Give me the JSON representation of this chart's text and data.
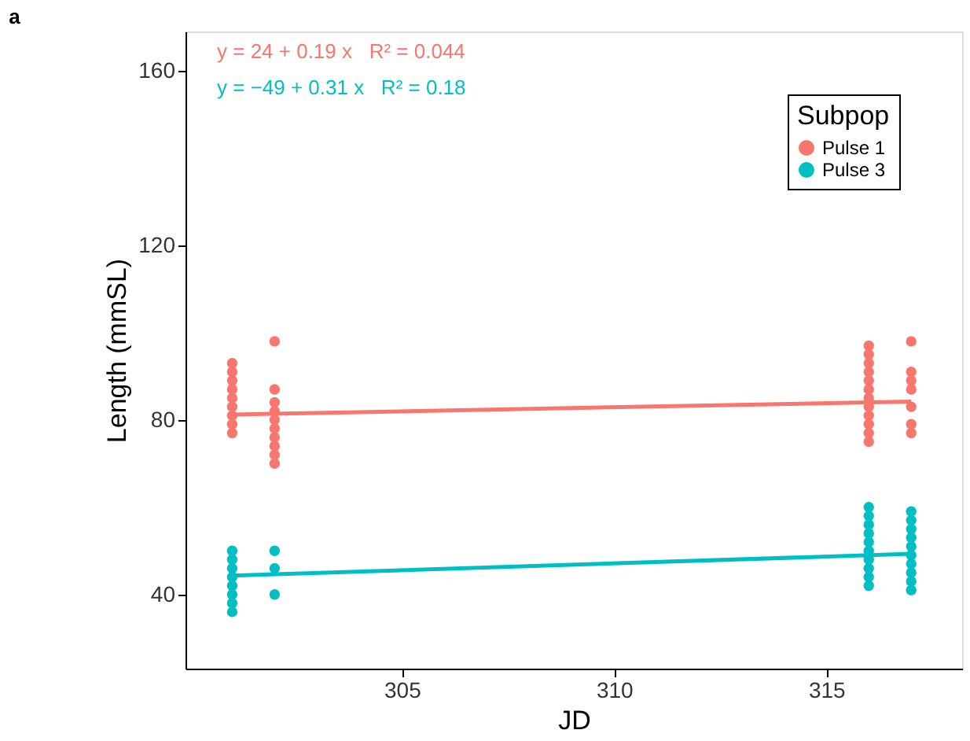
{
  "chart_data": {
    "type": "scatter",
    "title": "a",
    "xlabel": "JD",
    "ylabel": "Length (mmSL)",
    "legend_title": "Subpop",
    "legend": "top right",
    "grid": false,
    "marker": "circle",
    "xlim": [
      299.9,
      318.2
    ],
    "ylim": [
      23,
      169
    ],
    "xticks": [
      305,
      310,
      315
    ],
    "yticks": [
      40,
      80,
      120,
      160
    ],
    "annotations": [
      "y = 24 + 0.19 x   R² = 0.044",
      "y = −49 + 0.31 x   R² = 0.18"
    ],
    "series": [
      {
        "name": "Pulse 1",
        "color": "#f8766d",
        "x": [
          301,
          301,
          301,
          301,
          301,
          301,
          301,
          301,
          301,
          302,
          302,
          302,
          302,
          302,
          302,
          302,
          302,
          302,
          302,
          316,
          316,
          316,
          316,
          316,
          316,
          316,
          316,
          316,
          316,
          316,
          316,
          317,
          317,
          317,
          317,
          317,
          317,
          317
        ],
        "values": [
          77,
          79,
          81,
          83,
          85,
          87,
          89,
          91,
          93,
          70,
          72,
          74,
          76,
          78,
          80,
          82,
          84,
          87,
          98,
          75,
          77,
          79,
          81,
          83,
          85,
          87,
          89,
          91,
          93,
          95,
          97,
          77,
          79,
          83,
          87,
          89,
          91,
          98
        ]
      },
      {
        "name": "Pulse 3",
        "color": "#00bfc4",
        "x": [
          301,
          301,
          301,
          301,
          301,
          301,
          301,
          301,
          302,
          302,
          302,
          316,
          316,
          316,
          316,
          316,
          316,
          316,
          316,
          316,
          316,
          317,
          317,
          317,
          317,
          317,
          317,
          317,
          317,
          317,
          317
        ],
        "values": [
          36,
          38,
          40,
          42,
          44,
          46,
          48,
          50,
          40,
          46,
          50,
          42,
          44,
          46,
          48,
          50,
          52,
          54,
          56,
          58,
          60,
          41,
          43,
          45,
          47,
          49,
          51,
          53,
          55,
          57,
          59
        ]
      },
      {
        "color": "#f8766d",
        "type": "line",
        "marker": "none",
        "x": [
          301,
          317
        ],
        "values": [
          81.2,
          84.2
        ]
      },
      {
        "color": "#00bfc4",
        "type": "line",
        "marker": "none",
        "x": [
          301,
          317
        ],
        "values": [
          44.3,
          49.3
        ]
      }
    ]
  }
}
